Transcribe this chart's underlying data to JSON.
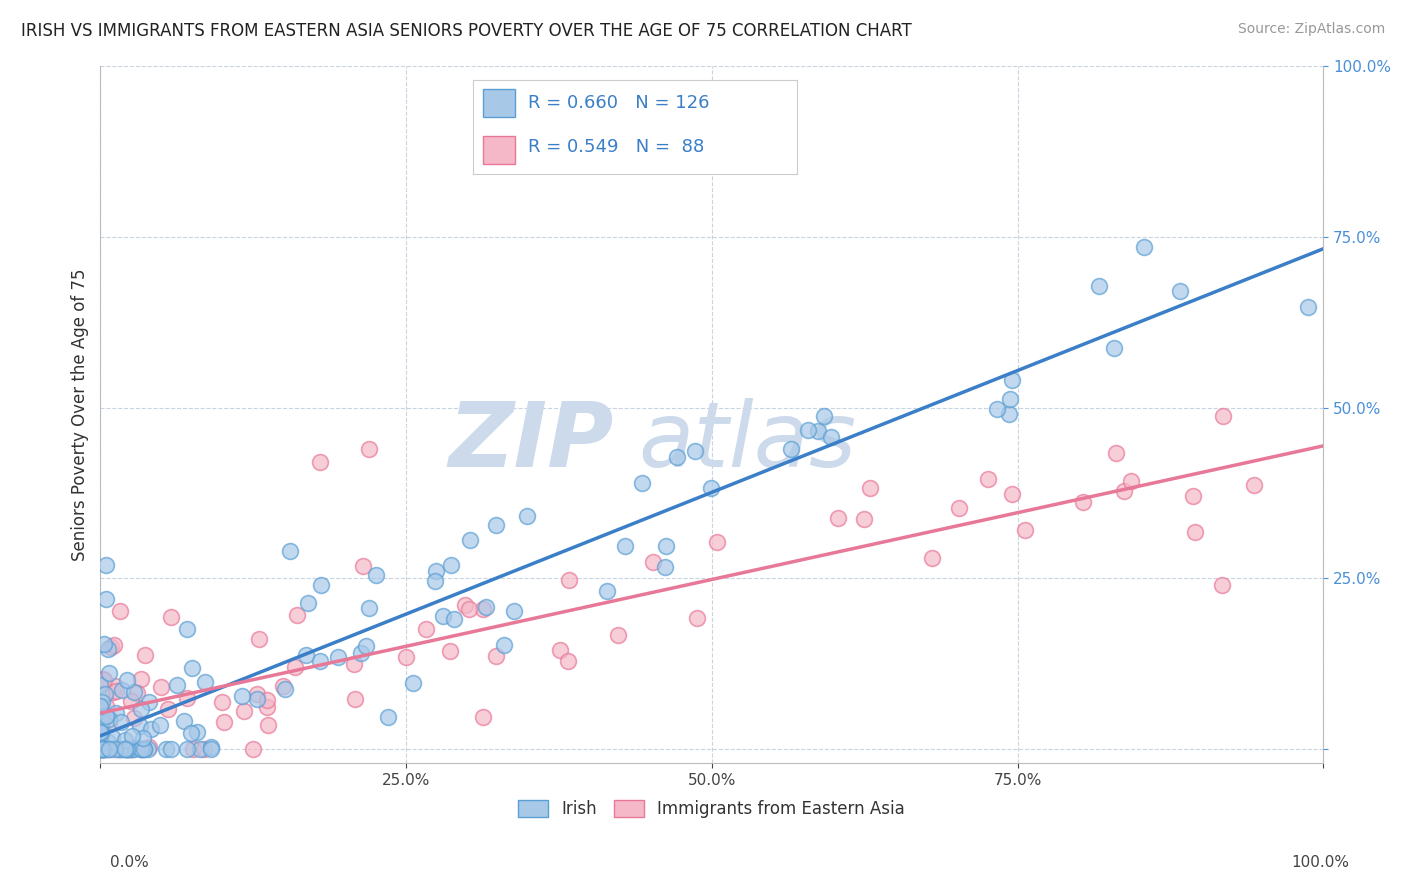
{
  "title": "IRISH VS IMMIGRANTS FROM EASTERN ASIA SENIORS POVERTY OVER THE AGE OF 75 CORRELATION CHART",
  "source": "Source: ZipAtlas.com",
  "ylabel": "Seniors Poverty Over the Age of 75",
  "blue_R": 0.66,
  "blue_N": 126,
  "pink_R": 0.549,
  "pink_N": 88,
  "blue_scatter_color": "#a8c8e8",
  "blue_edge_color": "#5a9fd4",
  "pink_scatter_color": "#f5b8c8",
  "pink_edge_color": "#e87898",
  "blue_line_color": "#3a7fc8",
  "pink_line_color": "#e87898",
  "watermark_zip": "ZIP",
  "watermark_atlas": "atlas",
  "watermark_color": "#ccdaeb",
  "legend_label_blue": "Irish",
  "legend_label_pink": "Immigrants from Eastern Asia",
  "xlim": [
    0.0,
    1.0
  ],
  "ylim": [
    -0.02,
    1.0
  ],
  "xticks": [
    0.0,
    0.25,
    0.5,
    0.75,
    1.0
  ],
  "yticks": [
    0.0,
    0.25,
    0.5,
    0.75,
    1.0
  ],
  "background_color": "#ffffff",
  "grid_color": "#c8d4e0",
  "title_fontsize": 12,
  "source_fontsize": 10,
  "tick_fontsize": 11
}
